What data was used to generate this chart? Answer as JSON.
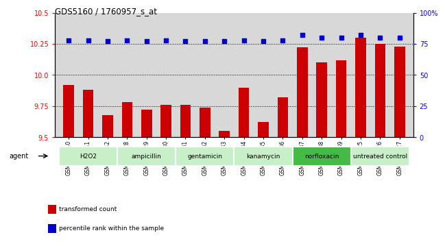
{
  "title": "GDS5160 / 1760957_s_at",
  "samples": [
    "GSM1356340",
    "GSM1356341",
    "GSM1356342",
    "GSM1356328",
    "GSM1356329",
    "GSM1356330",
    "GSM1356331",
    "GSM1356332",
    "GSM1356333",
    "GSM1356334",
    "GSM1356335",
    "GSM1356336",
    "GSM1356337",
    "GSM1356338",
    "GSM1356339",
    "GSM1356325",
    "GSM1356326",
    "GSM1356327"
  ],
  "transformed_count": [
    9.92,
    9.88,
    9.68,
    9.78,
    9.72,
    9.76,
    9.76,
    9.74,
    9.55,
    9.9,
    9.62,
    9.82,
    10.22,
    10.1,
    10.12,
    10.3,
    10.25,
    10.23
  ],
  "percentile_rank": [
    78,
    78,
    77,
    78,
    77,
    78,
    77,
    77,
    77,
    78,
    77,
    78,
    82,
    80,
    80,
    82,
    80,
    80
  ],
  "groups": [
    {
      "name": "H2O2",
      "start": 0,
      "end": 3,
      "color": "#c8f0c8"
    },
    {
      "name": "ampicillin",
      "start": 3,
      "end": 6,
      "color": "#c8f0c8"
    },
    {
      "name": "gentamicin",
      "start": 6,
      "end": 9,
      "color": "#c8f0c8"
    },
    {
      "name": "kanamycin",
      "start": 9,
      "end": 12,
      "color": "#c8f0c8"
    },
    {
      "name": "norfloxacin",
      "start": 12,
      "end": 15,
      "color": "#44bb44"
    },
    {
      "name": "untreated control",
      "start": 15,
      "end": 18,
      "color": "#c8f0c8"
    }
  ],
  "ymin": 9.5,
  "ymax": 10.5,
  "ylim_right": [
    0,
    100
  ],
  "yticks_left": [
    9.5,
    9.75,
    10.0,
    10.25,
    10.5
  ],
  "yticks_right": [
    0,
    25,
    50,
    75,
    100
  ],
  "bar_color": "#cc0000",
  "dot_color": "#0000cc",
  "bar_width": 0.55,
  "plot_bg_color": "#d8d8d8",
  "legend_items": [
    {
      "label": "transformed count",
      "color": "#cc0000"
    },
    {
      "label": "percentile rank within the sample",
      "color": "#0000cc"
    }
  ]
}
